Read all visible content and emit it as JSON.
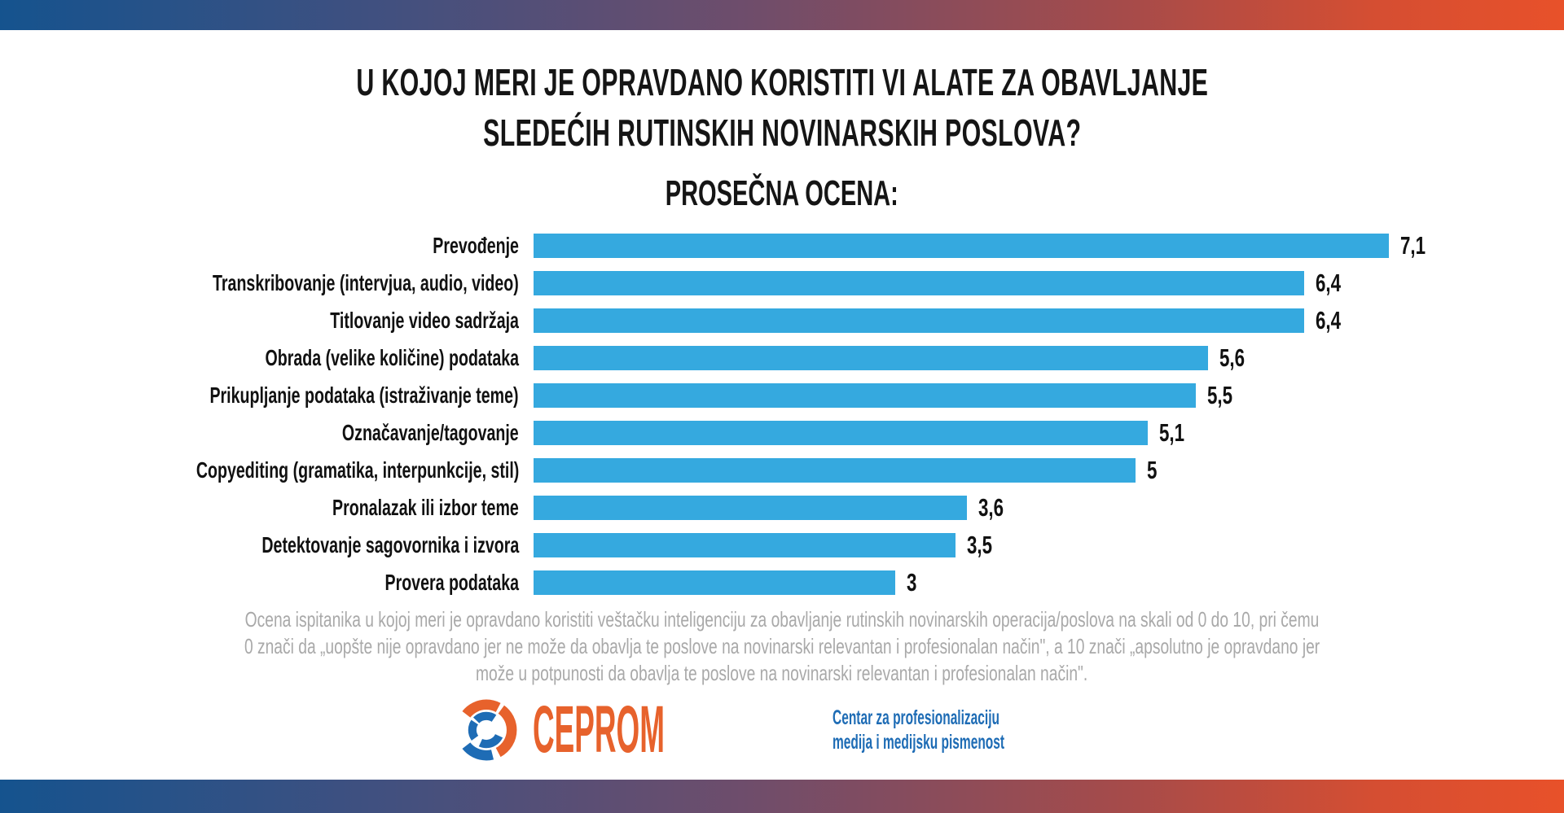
{
  "header": {
    "title_line1": "U KOJOJ MERI JE OPRAVDANO KORISTITI VI ALATE ZA OBAVLJANJE",
    "title_line2": "SLEDEĆIH RUTINSKIH NOVINARSKIH POSLOVA?",
    "subtitle": "PROSEČNA OCENA:"
  },
  "chart_data": {
    "type": "bar",
    "orientation": "horizontal",
    "title": "PROSEČNA OCENA:",
    "categories": [
      "Prevođenje",
      "Transkribovanje (intervjua, audio, video)",
      "Titlovanje video sadržaja",
      "Obrada (velike količine) podataka",
      "Prikupljanje podataka (istraživanje teme)",
      "Označavanje/tagovanje",
      "Copyediting (gramatika, interpunkcije, stil)",
      "Pronalazak ili izbor teme",
      "Detektovanje sagovornika i izvora",
      "Provera podataka"
    ],
    "values": [
      7.1,
      6.4,
      6.4,
      5.6,
      5.5,
      5.1,
      5,
      3.6,
      3.5,
      3
    ],
    "value_labels": [
      "7,1",
      "6,4",
      "6,4",
      "5,6",
      "5,5",
      "5,1",
      "5",
      "3,6",
      "3,5",
      "3"
    ],
    "xlabel": "",
    "ylabel": "",
    "xlim": [
      0,
      10
    ],
    "grid": false,
    "legend": "none",
    "bar_color": "#35A9DF",
    "value_label_color": "#111111"
  },
  "footnote": {
    "line1": "Ocena ispitanika u kojoj meri je opravdano koristiti veštačku inteligenciju za obavljanje rutinskih novinarskih operacija/poslova na skali od 0 do 10, pri čemu",
    "line2": "0 znači da „uopšte nije opravdano jer ne može da obavlja te poslove na novinarski relevantan i profesionalan način\", a 10 znači „apsolutno je opravdano jer",
    "line3": "može u potpunosti da obavlja te poslove na novinarski relevantan i profesionalan način\"."
  },
  "logo": {
    "wordmark": "CEPROM",
    "tagline_line1": "Centar za profesionalizaciju",
    "tagline_line2": "medija i medijsku pismenost",
    "orange": "#E7622C",
    "blue": "#1E6CB5"
  },
  "colors": {
    "gradient_left": "#15538E",
    "gradient_right": "#E8512A",
    "bar_blue": "#35A9DF",
    "text_dark": "#151515",
    "footnote_gray": "#A9A9A9"
  }
}
